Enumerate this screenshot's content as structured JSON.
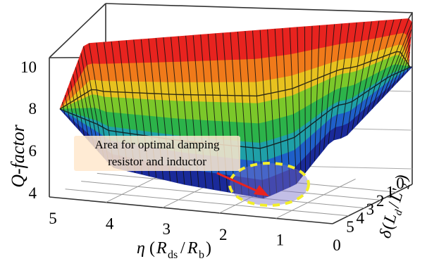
{
  "chart_data": {
    "type": "surface3d",
    "title": "",
    "zlabel": "Q-factor",
    "zlim": [
      3,
      11
    ],
    "z_ticks": [
      "10",
      "8",
      "6",
      "4"
    ],
    "x_ticks": [
      "5",
      "4",
      "3",
      "2",
      "1",
      "0"
    ],
    "y_ticks": [
      "5",
      "4",
      "3",
      "2",
      "1",
      "0"
    ],
    "colormap": [
      "#1a2a9a",
      "#1f5fc9",
      "#1fa0a8",
      "#2cb34a",
      "#7bc82a",
      "#e8c21f",
      "#f07a1a",
      "#e8231f"
    ],
    "annotation": {
      "line1": "Area for optimal damping",
      "line2": "resistor and inductor",
      "ellipse_color": "#f2ee2a",
      "arrow_color": "#e8231f"
    }
  }
}
